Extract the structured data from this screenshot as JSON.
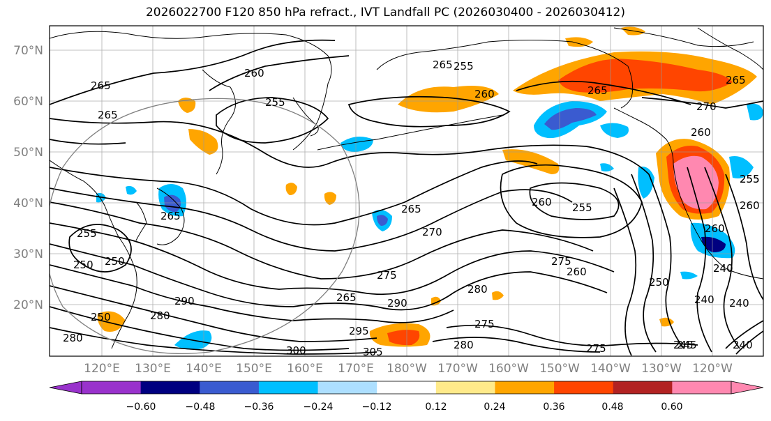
{
  "title": "2026022700 F120 850 hPa refract., IVT Landfall PC (2026030400 - 2026030412)",
  "lat_labels": [
    "70°N",
    "60°N",
    "50°N",
    "40°N",
    "30°N",
    "20°N"
  ],
  "lon_labels": [
    "120°E",
    "130°E",
    "140°E",
    "150°E",
    "160°E",
    "170°E",
    "180°W",
    "170°W",
    "160°W",
    "150°W",
    "140°W",
    "130°W",
    "120°W"
  ],
  "colorbar": {
    "colors": [
      "#9932CC",
      "#000080",
      "#3A5BD0",
      "#00BFFF",
      "#ADDFFF",
      "#FFFFFF",
      "#FFEA8A",
      "#FFA500",
      "#FF4500",
      "#B22222",
      "#FF88B0"
    ],
    "tick_labels": [
      "−0.60",
      "−0.48",
      "−0.36",
      "−0.24",
      "−0.12",
      "0.12",
      "0.24",
      "0.36",
      "0.48",
      "0.60"
    ]
  },
  "contour_labels": [
    "265",
    "260",
    "255",
    "265",
    "260",
    "265",
    "255",
    "260",
    "270",
    "260",
    "265",
    "265",
    "270",
    "265",
    "275",
    "260",
    "250",
    "240",
    "245",
    "240",
    "240",
    "255",
    "260",
    "255",
    "250",
    "275",
    "280",
    "295",
    "290",
    "280",
    "290",
    "250",
    "265",
    "305",
    "300",
    "280",
    "275",
    "245",
    "255",
    "240",
    "255",
    "250",
    "265",
    "280",
    "260",
    "275"
  ],
  "map_data": {
    "projection": "cylindrical",
    "lon_range": [
      "115°E",
      "115°W"
    ],
    "lat_range": [
      "10°N",
      "75°N"
    ]
  }
}
